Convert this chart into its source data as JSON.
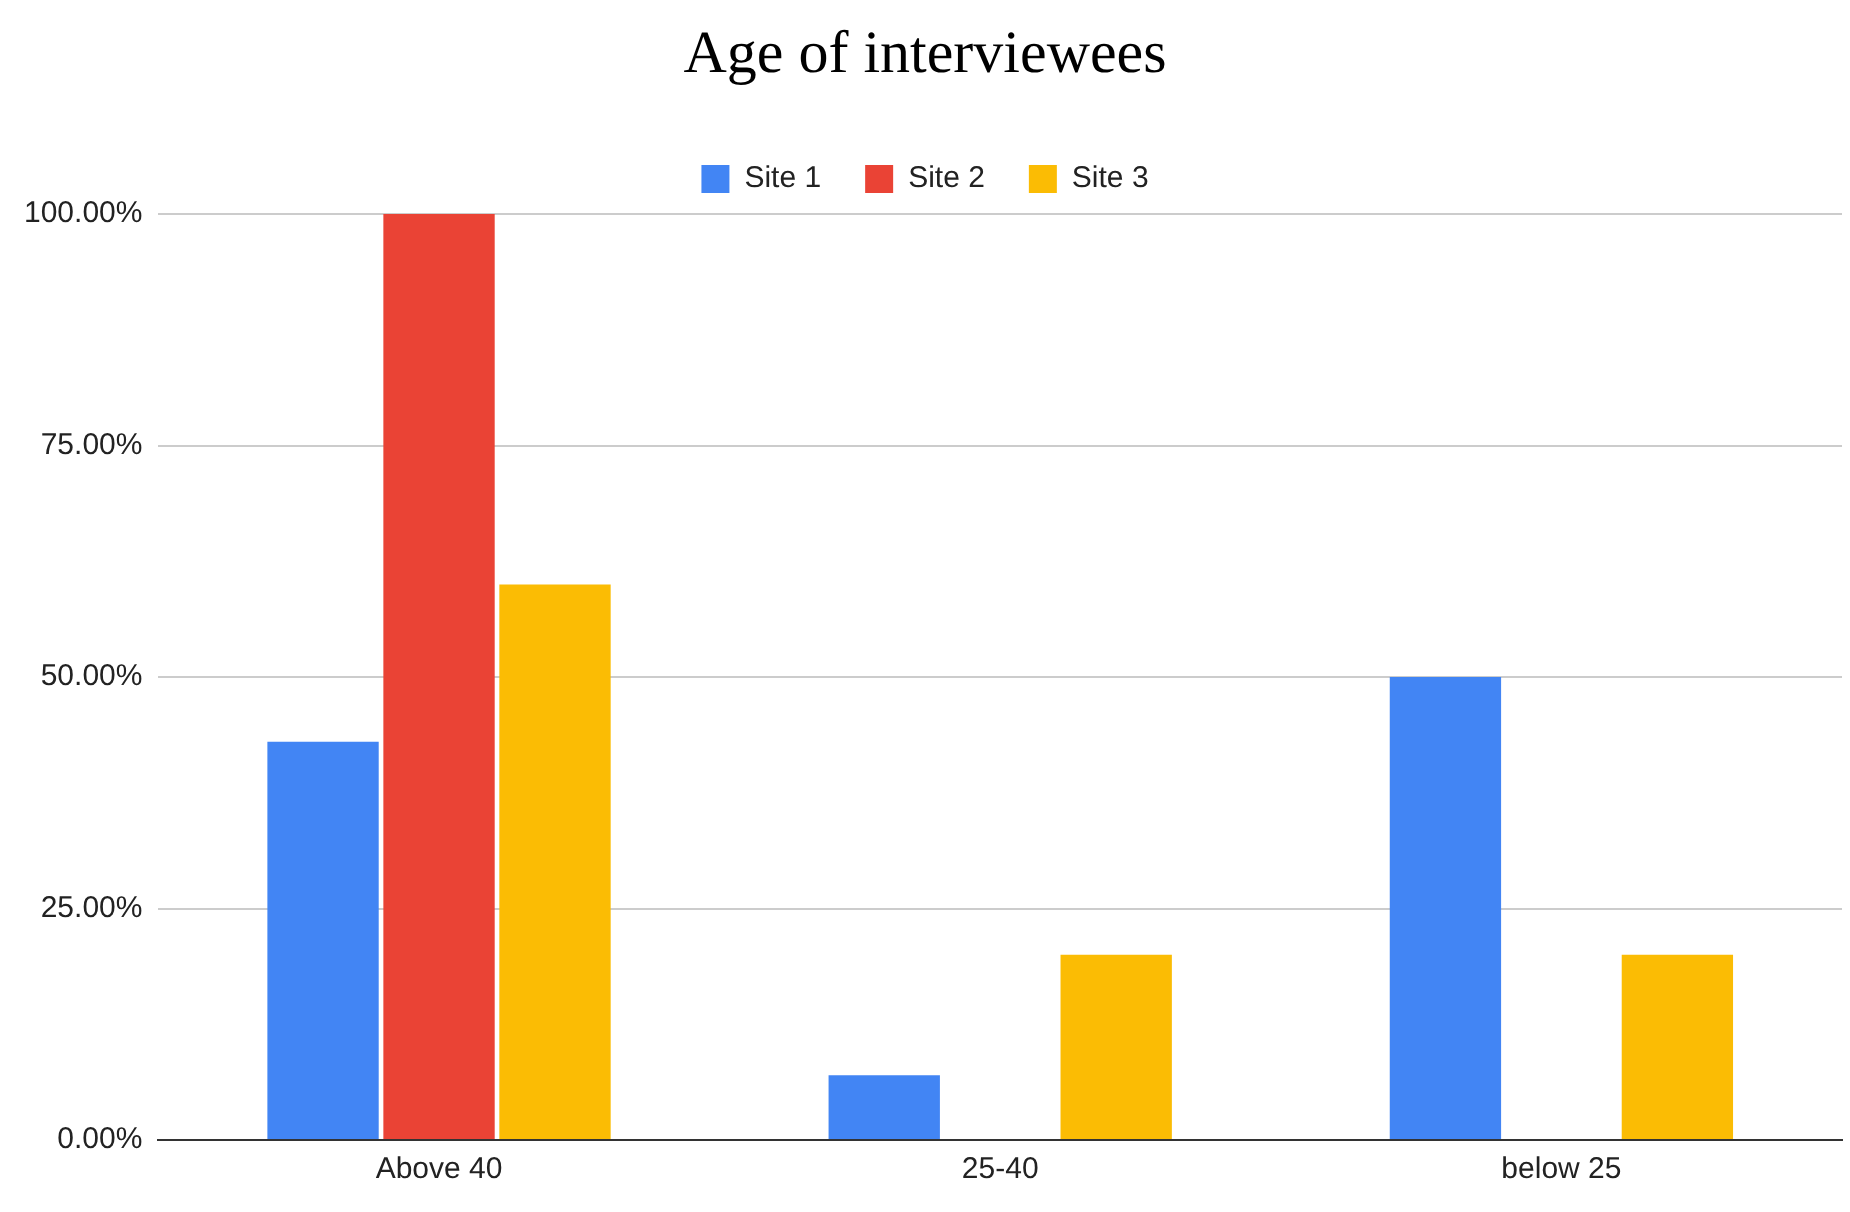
{
  "chart_data": {
    "type": "bar",
    "title": "Age of interviewees",
    "categories": [
      "Above 40",
      "25-40",
      "below 25"
    ],
    "series": [
      {
        "name": "Site 1",
        "color": "#4285f4",
        "values": [
          43,
          7,
          50
        ]
      },
      {
        "name": "Site 2",
        "color": "#ea4335",
        "values": [
          100,
          0,
          0
        ]
      },
      {
        "name": "Site 3",
        "color": "#fbbc04",
        "values": [
          60,
          20,
          20
        ]
      }
    ],
    "ylim": [
      0,
      100
    ],
    "yticks": [
      {
        "value": 0,
        "label": "0.00%"
      },
      {
        "value": 25,
        "label": "25.00%"
      },
      {
        "value": 50,
        "label": "50.00%"
      },
      {
        "value": 75,
        "label": "75.00%"
      },
      {
        "value": 100,
        "label": "100.00%"
      }
    ],
    "grid": "y",
    "legend": "top"
  }
}
